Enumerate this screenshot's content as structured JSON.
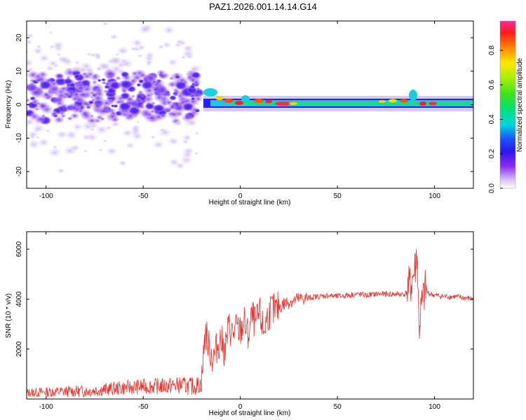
{
  "title": "PAZ1.2026.001.14.14.G14",
  "colors": {
    "line": "#e8302a",
    "axis": "#000000"
  },
  "chart_data": [
    {
      "type": "heatmap",
      "name": "spectrogram",
      "xlabel": "Height of straight line (km)",
      "ylabel": "Frequency (Hz)",
      "xlim": [
        -110,
        120
      ],
      "ylim": [
        -25,
        25
      ],
      "xticks": [
        -100,
        -50,
        0,
        50,
        100
      ],
      "yticks": [
        -20,
        -10,
        0,
        10,
        20
      ],
      "colorbar": {
        "label": "Normalized spectral amplitude",
        "range": [
          0.0,
          0.97
        ],
        "ticks": [
          0.0,
          0.2,
          0.4,
          0.6,
          0.8
        ],
        "tick_labels": [
          "0.0",
          "0.2",
          "0.4",
          "0.6",
          "0.8"
        ]
      },
      "description_regions": [
        {
          "x_range": [
            -110,
            -20
          ],
          "freq_range": [
            -25,
            25
          ],
          "amplitude": "low, scattered (0.05-0.3)"
        },
        {
          "x_range": [
            -20,
            92
          ],
          "freq_center": 0.5,
          "amplitude": "concentrated band 0.4-0.97"
        },
        {
          "x_range": [
            92,
            120
          ],
          "freq_center": 0.5,
          "amplitude": "concentrated band 0.4-0.97"
        }
      ]
    },
    {
      "type": "line",
      "name": "snr",
      "xlabel": "Height of straight line (km)",
      "ylabel": "SNR (10 * v/v)",
      "xlim": [
        -110,
        120
      ],
      "ylim": [
        0,
        6700
      ],
      "xticks": [
        -100,
        -50,
        0,
        50,
        100
      ],
      "yticks": [
        2000,
        4000,
        6000
      ],
      "series": [
        {
          "name": "SNR",
          "x": [
            -110,
            -100,
            -90,
            -80,
            -70,
            -60,
            -50,
            -40,
            -30,
            -25,
            -20,
            -18,
            -16,
            -14,
            -12,
            -10,
            -8,
            -6,
            -4,
            -2,
            0,
            2,
            4,
            6,
            8,
            10,
            12,
            14,
            16,
            18,
            20,
            25,
            30,
            35,
            40,
            45,
            50,
            55,
            60,
            65,
            70,
            75,
            80,
            85,
            88,
            90,
            91,
            92,
            93,
            95,
            100,
            105,
            110,
            115,
            120
          ],
          "y": [
            250,
            280,
            300,
            320,
            380,
            450,
            500,
            520,
            550,
            500,
            600,
            2800,
            2000,
            1600,
            2100,
            2400,
            1900,
            2900,
            2600,
            2800,
            2700,
            3100,
            2500,
            3300,
            3000,
            3400,
            2700,
            3300,
            3600,
            3500,
            3700,
            3900,
            4000,
            4050,
            4100,
            4150,
            4100,
            4150,
            4200,
            4150,
            4200,
            4200,
            4200,
            4200,
            4600,
            5200,
            6000,
            2800,
            3500,
            4300,
            4150,
            4100,
            4100,
            4050,
            4000
          ]
        }
      ]
    }
  ]
}
